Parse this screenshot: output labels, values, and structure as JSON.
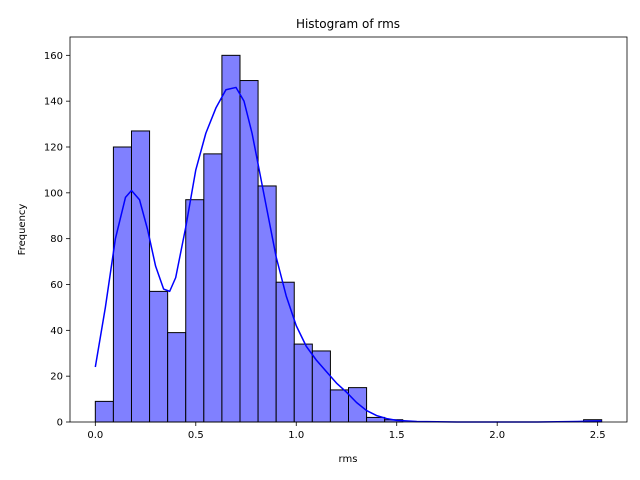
{
  "chart_data": {
    "type": "bar",
    "title": "Histogram of rms",
    "xlabel": "rms",
    "ylabel": "Frequency",
    "xlim": [
      -0.126,
      2.646
    ],
    "ylim": [
      0,
      168
    ],
    "xticks": [
      0.0,
      0.5,
      1.0,
      1.5,
      2.0,
      2.5
    ],
    "xtick_labels": [
      "0.0",
      "0.5",
      "1.0",
      "1.5",
      "2.0",
      "2.5"
    ],
    "yticks": [
      0,
      20,
      40,
      60,
      80,
      100,
      120,
      140,
      160
    ],
    "ytick_labels": [
      "0",
      "20",
      "40",
      "60",
      "80",
      "100",
      "120",
      "140",
      "160"
    ],
    "grid": false,
    "bin_edges": [
      0.0,
      0.09,
      0.18,
      0.27,
      0.36,
      0.45,
      0.54,
      0.63,
      0.72,
      0.81,
      0.9,
      0.99,
      1.08,
      1.17,
      1.26,
      1.35,
      1.44,
      1.53,
      1.62,
      1.71,
      1.8,
      1.89,
      1.98,
      2.07,
      2.16,
      2.25,
      2.34,
      2.43,
      2.52
    ],
    "counts": [
      9,
      120,
      127,
      57,
      39,
      97,
      117,
      160,
      149,
      103,
      61,
      34,
      31,
      14,
      15,
      2,
      1,
      0,
      0,
      0,
      0,
      0,
      0,
      0,
      0,
      0,
      0,
      1
    ],
    "bar_color": "#8080ff",
    "edge_color": "#000000",
    "kde": {
      "color": "#0000ff",
      "x": [
        0.0,
        0.05,
        0.1,
        0.15,
        0.18,
        0.22,
        0.26,
        0.3,
        0.34,
        0.37,
        0.4,
        0.45,
        0.5,
        0.55,
        0.6,
        0.65,
        0.7,
        0.74,
        0.78,
        0.82,
        0.86,
        0.9,
        0.95,
        1.0,
        1.05,
        1.1,
        1.15,
        1.2,
        1.25,
        1.3,
        1.35,
        1.4,
        1.45,
        1.5,
        1.6,
        1.8,
        2.0,
        2.2,
        2.4,
        2.52
      ],
      "y": [
        24,
        50,
        80,
        98,
        101,
        97,
        84,
        68,
        58,
        57,
        63,
        85,
        110,
        126,
        137,
        145,
        146,
        140,
        126,
        108,
        90,
        72,
        55,
        42,
        33,
        27,
        22,
        17,
        13,
        8.5,
        5,
        2.8,
        1.5,
        0.7,
        0.2,
        0,
        0,
        0,
        0.2,
        0.5
      ]
    }
  }
}
